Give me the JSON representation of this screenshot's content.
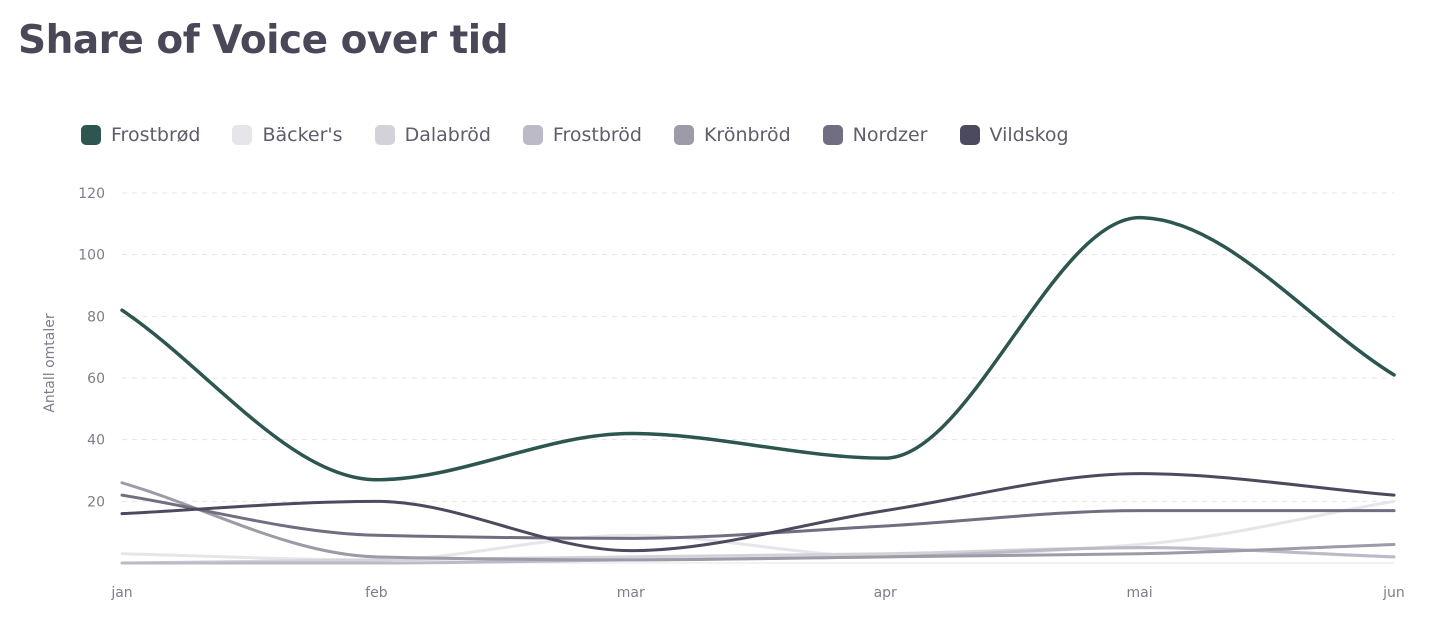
{
  "chart_data": {
    "type": "line",
    "title": "Share of Voice over tid",
    "ylabel": "Antall omtaler",
    "xlabel": "",
    "categories": [
      "jan",
      "feb",
      "mar",
      "apr",
      "mai",
      "jun"
    ],
    "ylim": [
      0,
      120
    ],
    "yticks": [
      "20",
      "40",
      "60",
      "80",
      "100",
      "120"
    ],
    "grid": "horizontal dashed",
    "legend_position": "top-left",
    "series": [
      {
        "name": "Frostbrød",
        "color": "#2d5650",
        "values": [
          82,
          27,
          42,
          34,
          112,
          61
        ]
      },
      {
        "name": "Bäcker's",
        "color": "#e6e5ea",
        "values": [
          3,
          1,
          9,
          2,
          6,
          20
        ]
      },
      {
        "name": "Dalabröd",
        "color": "#d3d2da",
        "values": [
          0,
          1,
          2,
          3,
          5,
          2
        ]
      },
      {
        "name": "Frostbröd",
        "color": "#bcbac6",
        "values": [
          0,
          0,
          1,
          2,
          5,
          2
        ]
      },
      {
        "name": "Krönbröd",
        "color": "#9d9ba8",
        "values": [
          26,
          2,
          1,
          2,
          3,
          6
        ]
      },
      {
        "name": "Nordzer",
        "color": "#706e80",
        "values": [
          22,
          9,
          8,
          12,
          17,
          17
        ]
      },
      {
        "name": "Vildskog",
        "color": "#4c4a5e",
        "values": [
          16,
          20,
          4,
          17,
          29,
          22
        ]
      }
    ]
  }
}
